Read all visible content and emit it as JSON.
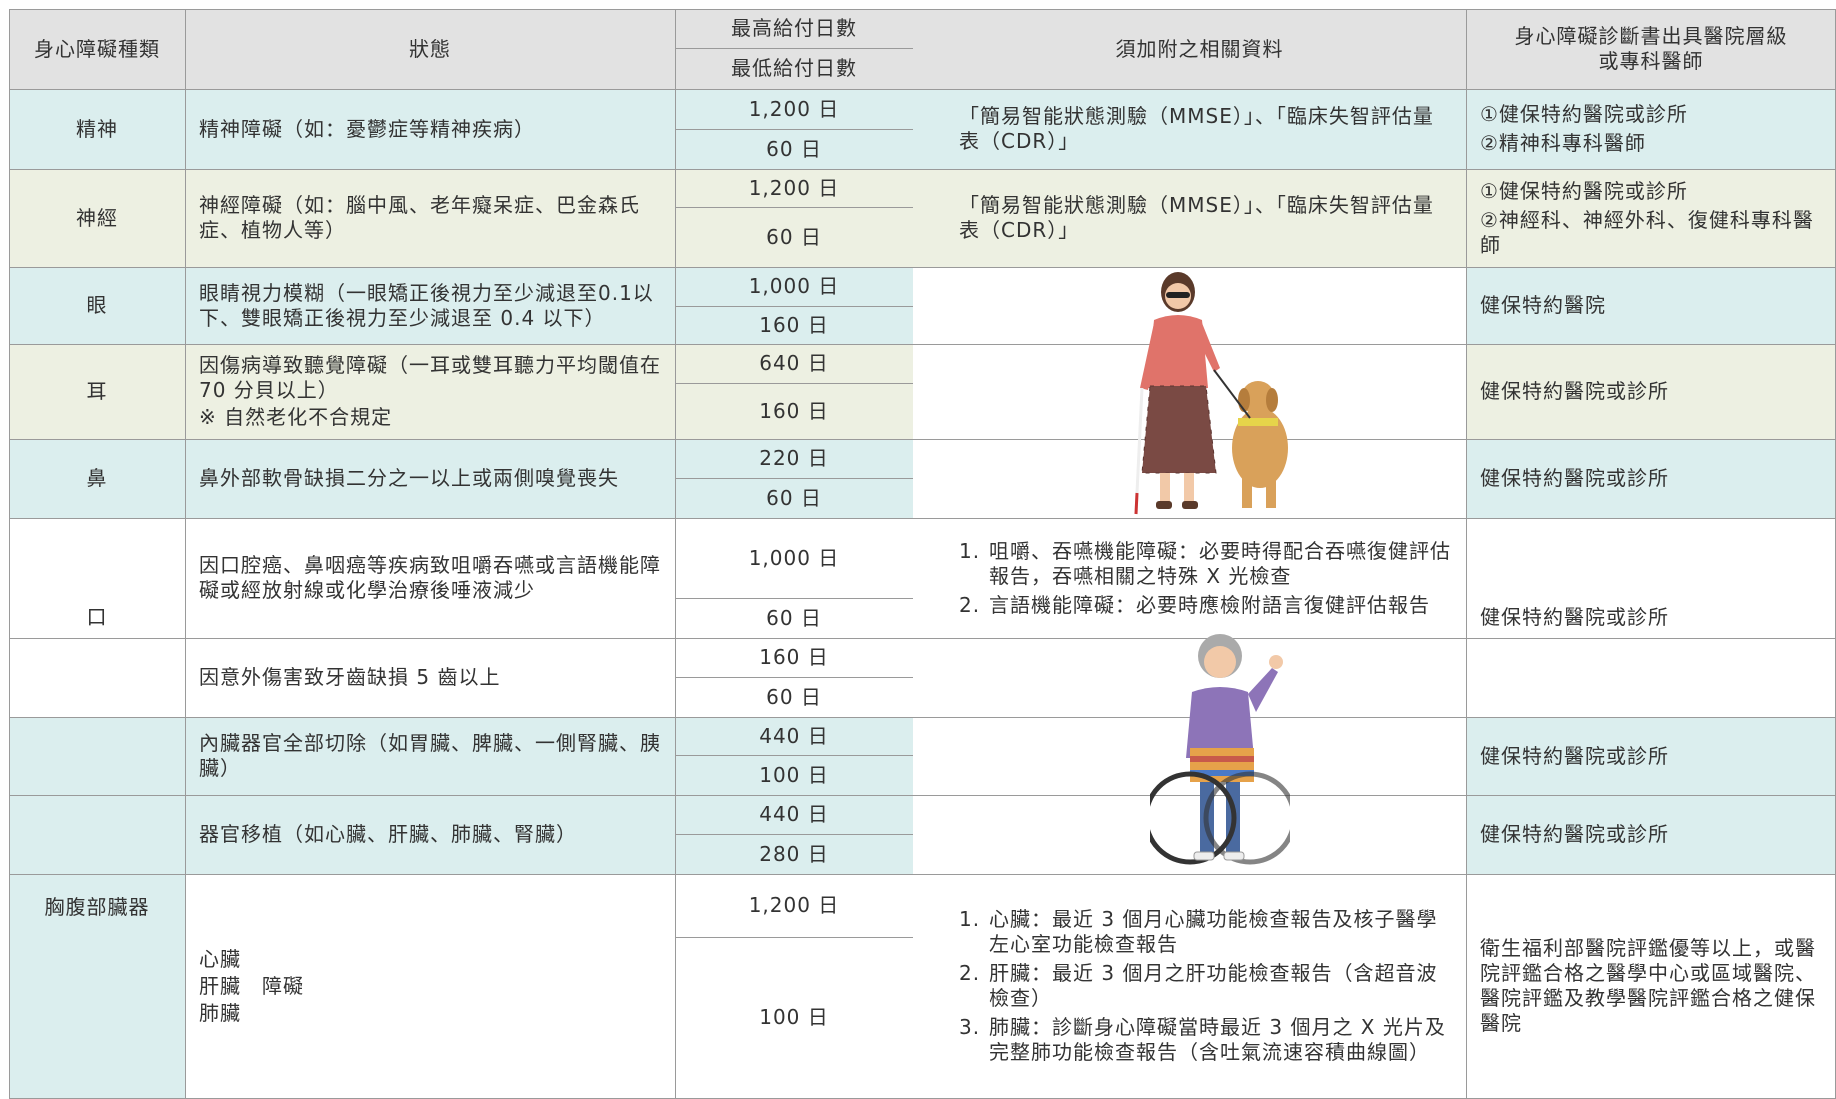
{
  "header": {
    "type": "身心障礙種類",
    "status": "狀態",
    "max_days": "最高給付日數",
    "min_days": "最低給付日數",
    "attachments": "須加附之相關資料",
    "hospital": [
      "身心障礙診斷書出具醫院層級",
      "或專科醫師"
    ]
  },
  "rows": [
    {
      "category": "精神",
      "status": [
        "精神障礙（如：憂鬱症等精神疾病）"
      ],
      "max_days": "1,200 日",
      "min_days": "60 日",
      "attachments": "「簡易智能狀態測驗（MMSE）」、「臨床失智評估量表（CDR）」",
      "hospital": [
        "①健保特約醫院或診所",
        "②精神科專科醫師"
      ]
    },
    {
      "category": "神經",
      "status": [
        "神經障礙（如：腦中風、老年癡呆症、巴金森氏症、植物人等）"
      ],
      "max_days": "1,200 日",
      "min_days": "60 日",
      "attachments": "「簡易智能狀態測驗（MMSE）」、「臨床失智評估量表（CDR）」",
      "hospital": [
        "①健保特約醫院或診所",
        "②神經科、神經外科、復健科專科醫師"
      ]
    },
    {
      "category": "眼",
      "status": [
        "眼睛視力模糊（一眼矯正後視力至少減退至0.1以下、雙眼矯正後視力至少減退至 0.4 以下）"
      ],
      "max_days": "1,000 日",
      "min_days": "160 日",
      "hospital": [
        "健保特約醫院"
      ]
    },
    {
      "category": "耳",
      "status": [
        "因傷病導致聽覺障礙（一耳或雙耳聽力平均閾值在 70 分貝以上）",
        "※ 自然老化不合規定"
      ],
      "max_days": "640 日",
      "min_days": "160 日",
      "hospital": [
        "健保特約醫院或診所"
      ]
    },
    {
      "category": "鼻",
      "status": [
        "鼻外部軟骨缺損二分之一以上或兩側嗅覺喪失"
      ],
      "max_days": "220 日",
      "min_days": "60 日",
      "hospital": [
        "健保特約醫院或診所"
      ]
    },
    {
      "category": "口",
      "status": [
        "因口腔癌、鼻咽癌等疾病致咀嚼吞嚥或言語機能障礙或經放射線或化學治療後唾液減少"
      ],
      "max_days": "1,000 日",
      "min_days": "60 日",
      "attachments": [
        {
          "num": "1.",
          "text": "咀嚼、吞嚥機能障礙：必要時得配合吞嚥復健評估報告，吞嚥相關之特殊 X 光檢查"
        },
        {
          "num": "2.",
          "text": "言語機能障礙：必要時應檢附語言復健評估報告"
        }
      ],
      "hospital": [
        "健保特約醫院或診所"
      ]
    },
    {
      "status": [
        "因意外傷害致牙齒缺損 5 齒以上"
      ],
      "max_days": "160 日",
      "min_days": "60 日"
    },
    {
      "category": "胸腹部臟器",
      "status": [
        "內臟器官全部切除（如胃臟、脾臟、一側腎臟、胰臟）"
      ],
      "max_days": "440 日",
      "min_days": "100 日",
      "hospital": [
        "健保特約醫院或診所"
      ]
    },
    {
      "status": [
        "器官移植（如心臟、肝臟、肺臟、腎臟）"
      ],
      "max_days": "440 日",
      "min_days": "280 日",
      "hospital": [
        "健保特約醫院或診所"
      ]
    },
    {
      "status": [
        "心臟",
        "肝臟　障礙",
        "肺臟"
      ],
      "max_days": "1,200 日",
      "min_days": "100 日",
      "attachments": [
        {
          "num": "1.",
          "text": "心臟：最近 3 個月心臟功能檢查報告及核子醫學左心室功能檢查報告"
        },
        {
          "num": "2.",
          "text": "肝臟：最近 3 個月之肝功能檢查報告（含超音波檢查）"
        },
        {
          "num": "3.",
          "text": "肺臟：診斷身心障礙當時最近 3 個月之 X 光片及完整肺功能檢查報告（含吐氣流速容積曲線圖）"
        }
      ],
      "hospital": [
        "衛生福利部醫院評鑑優等以上，或醫院評鑑合格之醫學中心或區域醫院、醫院評鑑及教學醫院評鑑合格之健保醫院"
      ]
    }
  ]
}
